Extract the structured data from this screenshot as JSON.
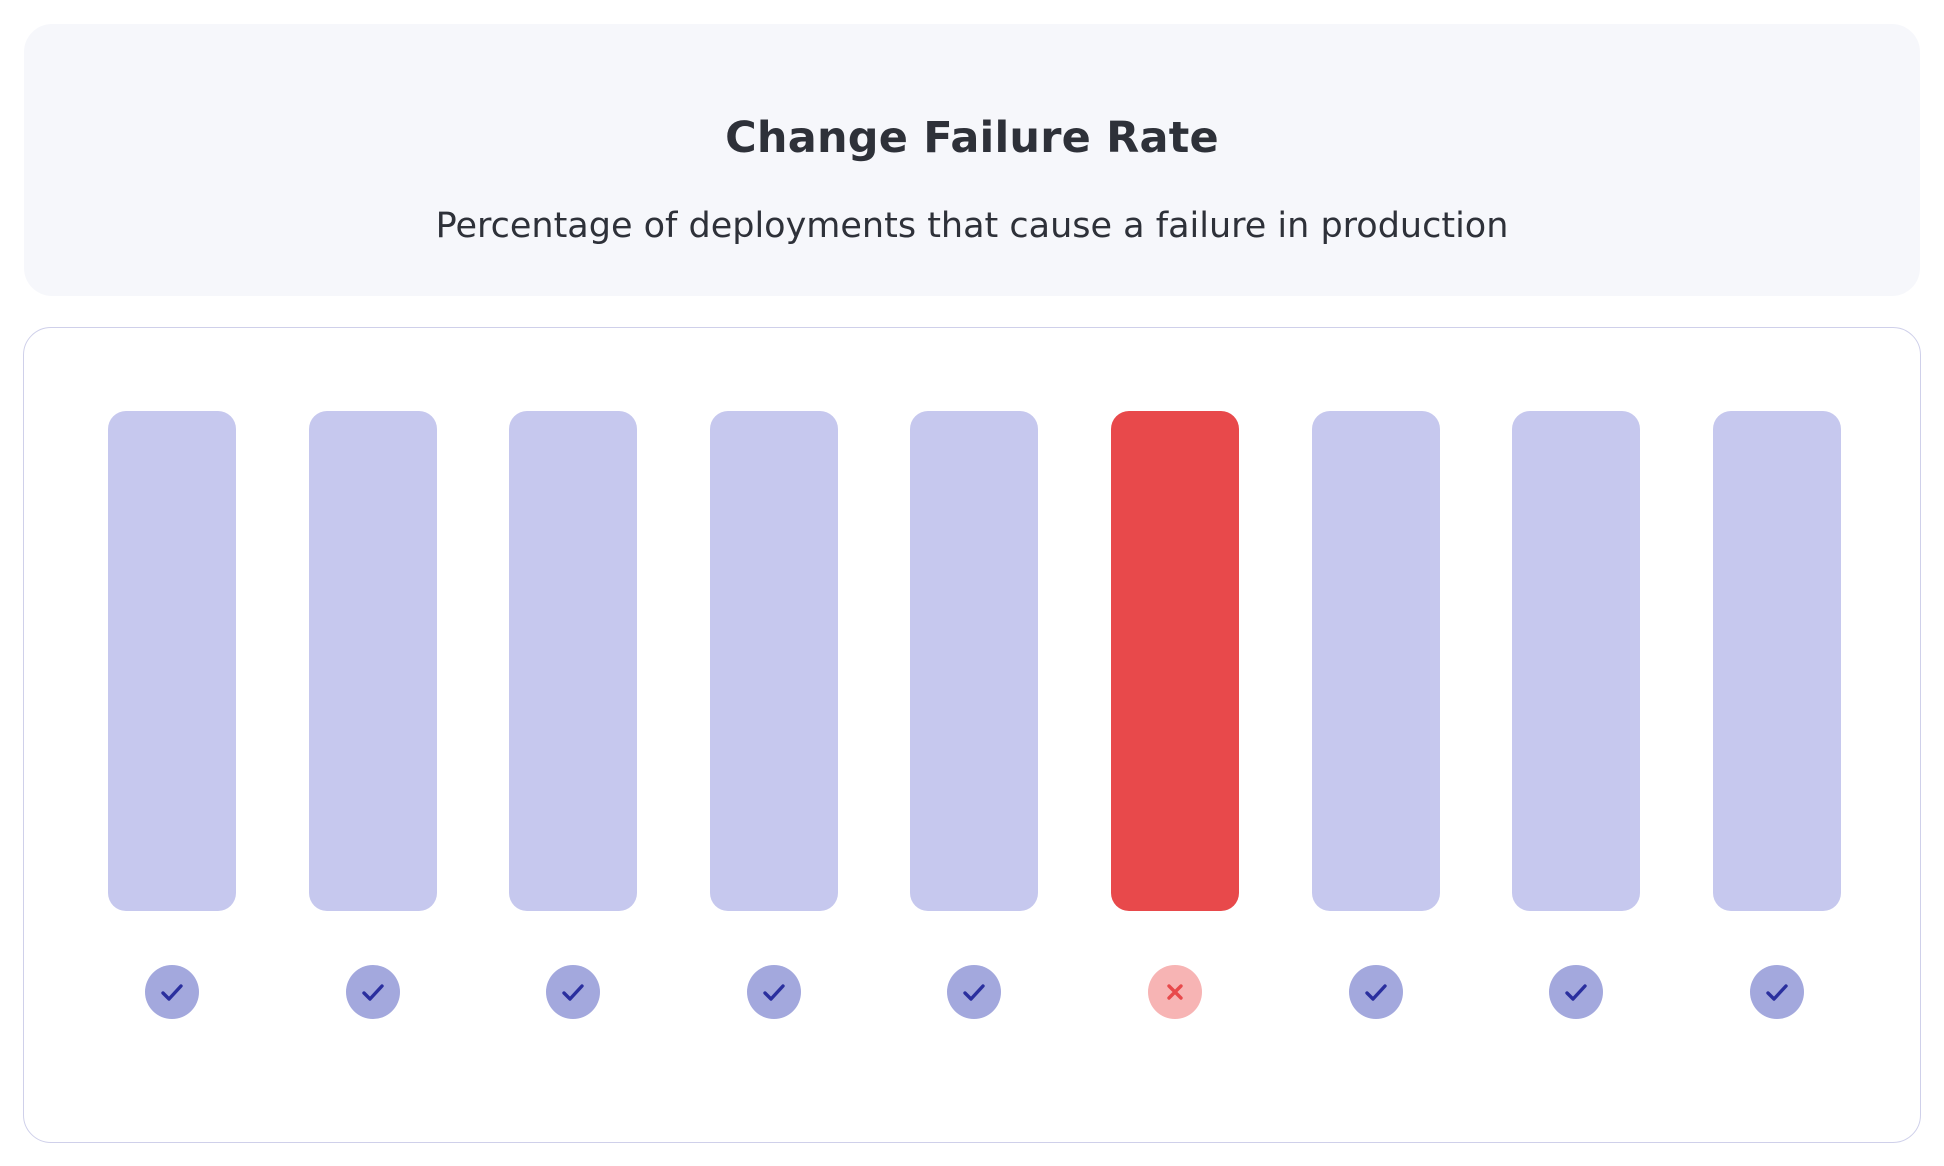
{
  "header": {
    "title": "Change Failure Rate",
    "subtitle": "Percentage of deployments that cause a failure in production"
  },
  "deployments": [
    {
      "status": "success",
      "icon": "check-icon"
    },
    {
      "status": "success",
      "icon": "check-icon"
    },
    {
      "status": "success",
      "icon": "check-icon"
    },
    {
      "status": "success",
      "icon": "check-icon"
    },
    {
      "status": "success",
      "icon": "check-icon"
    },
    {
      "status": "failure",
      "icon": "cross-icon"
    },
    {
      "status": "success",
      "icon": "check-icon"
    },
    {
      "status": "success",
      "icon": "check-icon"
    },
    {
      "status": "success",
      "icon": "check-icon"
    }
  ],
  "colors": {
    "success_bar": "#c6c8ee",
    "success_badge": "#a3a8dd",
    "success_icon": "#2a2f9e",
    "failure_bar": "#e8494b",
    "failure_badge": "#f7b4b4",
    "failure_icon": "#e8494b"
  }
}
